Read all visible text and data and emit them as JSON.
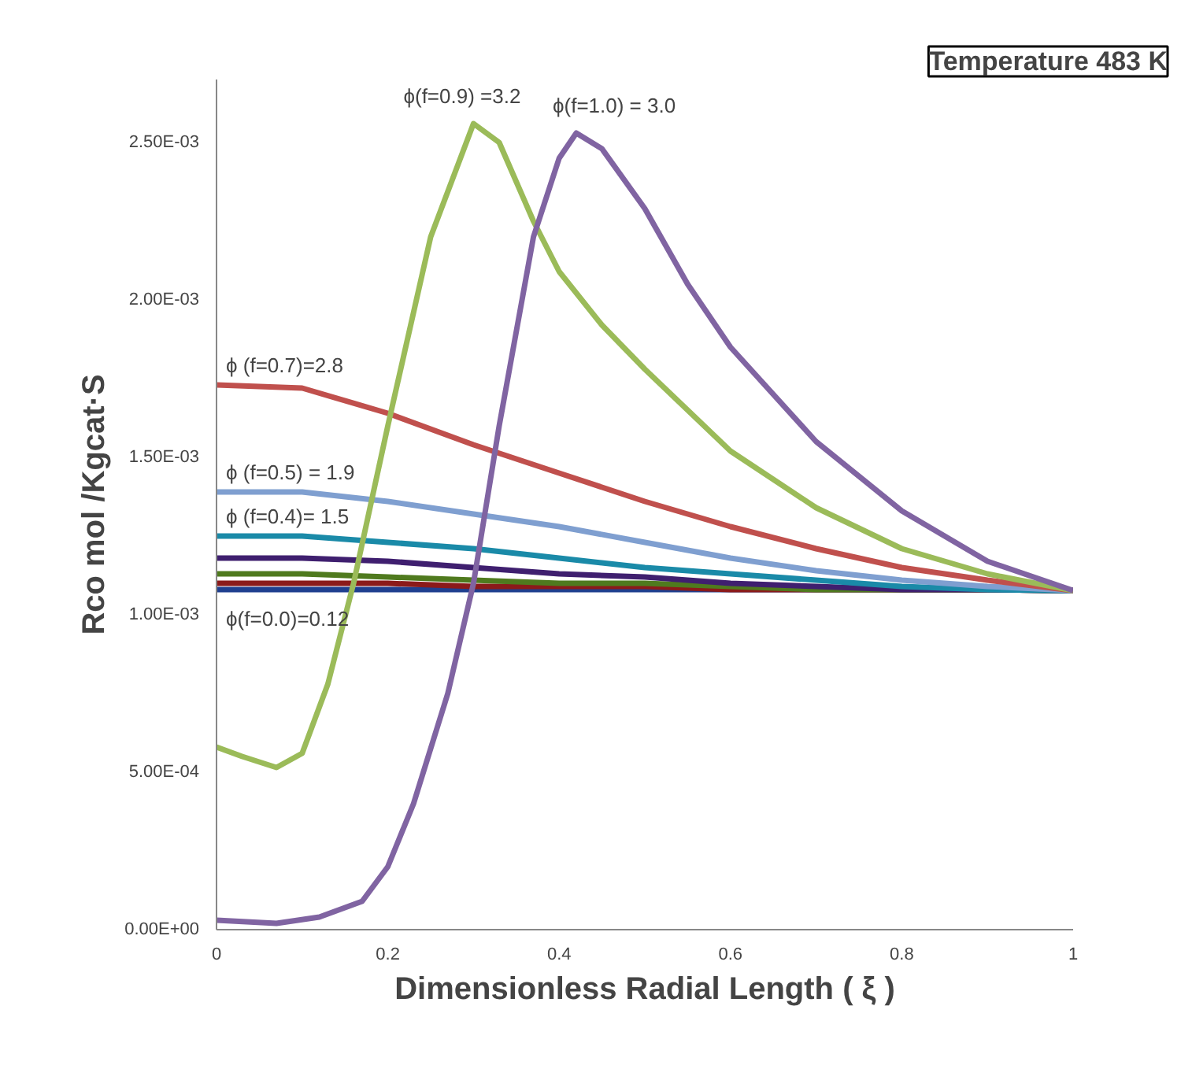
{
  "chart_data": {
    "type": "line",
    "title": "Temperature 483 K",
    "xlabel": "Dimensionless Radial Length ( ξ )",
    "ylabel": "Rco mol /Kgcat·S",
    "x": [
      0,
      0.1,
      0.2,
      0.3,
      0.4,
      0.5,
      0.6,
      0.7,
      0.8,
      0.9,
      1.0
    ],
    "series": [
      {
        "name": "ϕ(f=0.0)=0.12",
        "color": "#1f3f8f",
        "values": [
          0.00108,
          0.00108,
          0.00108,
          0.00108,
          0.00108,
          0.00108,
          0.00108,
          0.00108,
          0.00108,
          0.00108,
          0.001077
        ]
      },
      {
        "color": "#8b1a1a",
        "values": [
          0.0011,
          0.0011,
          0.0011,
          0.00109,
          0.00109,
          0.00109,
          0.00108,
          0.00108,
          0.00108,
          0.00108,
          0.001077
        ]
      },
      {
        "color": "#4f7a1e",
        "values": [
          0.00113,
          0.00113,
          0.00112,
          0.00111,
          0.0011,
          0.0011,
          0.00109,
          0.00108,
          0.00108,
          0.00108,
          0.001077
        ]
      },
      {
        "color": "#3f1f6f",
        "values": [
          0.00118,
          0.00118,
          0.00117,
          0.00115,
          0.00113,
          0.00112,
          0.0011,
          0.00109,
          0.00108,
          0.00108,
          0.001077
        ]
      },
      {
        "name": "ϕ (f=0.4)= 1.5",
        "color": "#1a8aa8",
        "values": [
          0.00125,
          0.00125,
          0.00123,
          0.00121,
          0.00118,
          0.00115,
          0.00113,
          0.00111,
          0.00109,
          0.00108,
          0.001077
        ]
      },
      {
        "name": "ϕ (f=0.5) = 1.9",
        "color": "#7f9fd0",
        "values": [
          0.00139,
          0.00139,
          0.00136,
          0.00132,
          0.00128,
          0.00123,
          0.00118,
          0.00114,
          0.00111,
          0.00109,
          0.001077
        ]
      },
      {
        "name": "ϕ (f=0.7)=2.8",
        "color": "#c0504d",
        "values": [
          0.00173,
          0.00172,
          0.00164,
          0.00154,
          0.00145,
          0.00136,
          0.00128,
          0.00121,
          0.00115,
          0.00111,
          0.001077
        ]
      },
      {
        "name": "ϕ(f=0.9) =3.2",
        "color": "#9bbb59",
        "x": [
          0,
          0.03,
          0.07,
          0.1,
          0.13,
          0.16,
          0.2,
          0.25,
          0.3,
          0.33,
          0.37,
          0.4,
          0.45,
          0.5,
          0.6,
          0.7,
          0.8,
          0.9,
          1.0
        ],
        "values": [
          0.00058,
          0.00055,
          0.000515,
          0.00056,
          0.00078,
          0.0011,
          0.0016,
          0.0022,
          0.00256,
          0.0025,
          0.00225,
          0.00209,
          0.00192,
          0.00178,
          0.00152,
          0.00134,
          0.00121,
          0.00113,
          0.001077
        ]
      },
      {
        "name": "ϕ(f=1.0) = 3.0",
        "color": "#8064a2",
        "x": [
          0,
          0.07,
          0.12,
          0.17,
          0.2,
          0.23,
          0.27,
          0.3,
          0.33,
          0.37,
          0.4,
          0.42,
          0.45,
          0.5,
          0.55,
          0.6,
          0.7,
          0.8,
          0.9,
          1.0
        ],
        "values": [
          3e-05,
          2e-05,
          4e-05,
          9e-05,
          0.0002,
          0.0004,
          0.00075,
          0.0011,
          0.0016,
          0.0022,
          0.00245,
          0.00253,
          0.00248,
          0.00229,
          0.00205,
          0.00185,
          0.00155,
          0.00133,
          0.00117,
          0.001077
        ]
      }
    ],
    "xlim": [
      0,
      1
    ],
    "xticks": [
      0,
      0.2,
      0.4,
      0.6,
      0.8,
      1
    ],
    "ylim": [
      0,
      0.0027
    ],
    "yticks": [
      {
        "value": 0,
        "label": "0.00E+00"
      },
      {
        "value": 0.0005,
        "label": "5.00E-04"
      },
      {
        "value": 0.001,
        "label": "1.00E-03"
      },
      {
        "value": 0.0015,
        "label": "1.50E-03"
      },
      {
        "value": 0.002,
        "label": "2.00E-03"
      },
      {
        "value": 0.0025,
        "label": "2.50E-03"
      }
    ],
    "grid": false,
    "marker": "none",
    "line_style": "solid"
  }
}
